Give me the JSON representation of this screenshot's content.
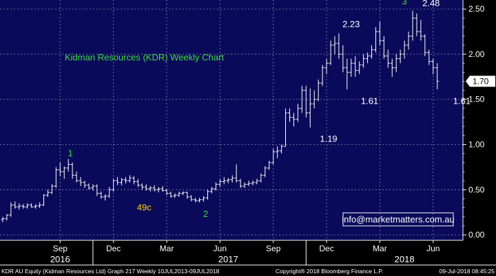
{
  "chart_data": {
    "type": "ohlc",
    "title": "Kidman Resources (KDR) Weekly Chart",
    "title_color": "#3ddc3d",
    "watermark": "info@marketmatters.com.au",
    "last_price_label": "1.70",
    "last_price": 1.7,
    "ylim": [
      -0.06,
      2.6
    ],
    "yticks": [
      0.0,
      0.5,
      1.0,
      1.5,
      2.0,
      2.5
    ],
    "ytick_labels": [
      "0.00",
      "0.50",
      "1.00",
      "1.50",
      "2.00",
      "2.50"
    ],
    "grid": true,
    "x_months": [
      {
        "label": "Sep",
        "week": 14
      },
      {
        "label": "Dec",
        "week": 27
      },
      {
        "label": "Mar",
        "week": 40
      },
      {
        "label": "Jun",
        "week": 53
      },
      {
        "label": "Sep",
        "week": 66
      },
      {
        "label": "Dec",
        "week": 79
      },
      {
        "label": "Mar",
        "week": 92
      },
      {
        "label": "Jun",
        "week": 105
      }
    ],
    "x_years": [
      {
        "label": "2016",
        "week": 14
      },
      {
        "label": "2017",
        "week": 55
      },
      {
        "label": "2018",
        "week": 98
      }
    ],
    "year_dividers": [
      22,
      74
    ],
    "annotations": [
      {
        "text": "1",
        "week": 16.5,
        "price": 0.87,
        "color": "#3ddc3d"
      },
      {
        "text": "49c",
        "week": 34.5,
        "price": 0.27,
        "color": "#ffd400"
      },
      {
        "text": "2",
        "week": 49.5,
        "price": 0.2,
        "color": "#3ddc3d"
      },
      {
        "text": "2.23",
        "week": 85,
        "price": 2.3,
        "color": "#ffffff"
      },
      {
        "text": "1.61",
        "week": 89.5,
        "price": 1.45,
        "color": "#ffffff"
      },
      {
        "text": "1.19",
        "week": 79.5,
        "price": 1.03,
        "color": "#ffffff"
      },
      {
        "text": "3",
        "week": 98,
        "price": 2.55,
        "color": "#3ddc3d"
      },
      {
        "text": "2.48",
        "week": 104.5,
        "price": 2.53,
        "color": "#ffffff"
      },
      {
        "text": "1.61",
        "week": 112,
        "price": 1.45,
        "color": "#ffffff"
      }
    ],
    "bars": [
      {
        "o": 0.17,
        "h": 0.2,
        "l": 0.14,
        "c": 0.18
      },
      {
        "o": 0.18,
        "h": 0.23,
        "l": 0.16,
        "c": 0.22
      },
      {
        "o": 0.22,
        "h": 0.36,
        "l": 0.2,
        "c": 0.33
      },
      {
        "o": 0.33,
        "h": 0.37,
        "l": 0.29,
        "c": 0.31
      },
      {
        "o": 0.31,
        "h": 0.35,
        "l": 0.28,
        "c": 0.32
      },
      {
        "o": 0.32,
        "h": 0.34,
        "l": 0.29,
        "c": 0.31
      },
      {
        "o": 0.31,
        "h": 0.35,
        "l": 0.29,
        "c": 0.33
      },
      {
        "o": 0.33,
        "h": 0.35,
        "l": 0.3,
        "c": 0.31
      },
      {
        "o": 0.31,
        "h": 0.34,
        "l": 0.29,
        "c": 0.32
      },
      {
        "o": 0.32,
        "h": 0.36,
        "l": 0.3,
        "c": 0.33
      },
      {
        "o": 0.33,
        "h": 0.45,
        "l": 0.32,
        "c": 0.44
      },
      {
        "o": 0.44,
        "h": 0.5,
        "l": 0.42,
        "c": 0.47
      },
      {
        "o": 0.47,
        "h": 0.56,
        "l": 0.45,
        "c": 0.54
      },
      {
        "o": 0.54,
        "h": 0.75,
        "l": 0.52,
        "c": 0.72
      },
      {
        "o": 0.72,
        "h": 0.8,
        "l": 0.65,
        "c": 0.7
      },
      {
        "o": 0.7,
        "h": 0.76,
        "l": 0.62,
        "c": 0.74
      },
      {
        "o": 0.74,
        "h": 0.84,
        "l": 0.7,
        "c": 0.78
      },
      {
        "o": 0.78,
        "h": 0.8,
        "l": 0.62,
        "c": 0.66
      },
      {
        "o": 0.66,
        "h": 0.7,
        "l": 0.58,
        "c": 0.6
      },
      {
        "o": 0.6,
        "h": 0.64,
        "l": 0.54,
        "c": 0.58
      },
      {
        "o": 0.58,
        "h": 0.6,
        "l": 0.52,
        "c": 0.55
      },
      {
        "o": 0.55,
        "h": 0.57,
        "l": 0.5,
        "c": 0.52
      },
      {
        "o": 0.52,
        "h": 0.56,
        "l": 0.49,
        "c": 0.54
      },
      {
        "o": 0.54,
        "h": 0.56,
        "l": 0.43,
        "c": 0.46
      },
      {
        "o": 0.46,
        "h": 0.48,
        "l": 0.4,
        "c": 0.42
      },
      {
        "o": 0.42,
        "h": 0.45,
        "l": 0.38,
        "c": 0.43
      },
      {
        "o": 0.43,
        "h": 0.53,
        "l": 0.41,
        "c": 0.5
      },
      {
        "o": 0.5,
        "h": 0.62,
        "l": 0.48,
        "c": 0.6
      },
      {
        "o": 0.6,
        "h": 0.64,
        "l": 0.55,
        "c": 0.58
      },
      {
        "o": 0.58,
        "h": 0.63,
        "l": 0.55,
        "c": 0.61
      },
      {
        "o": 0.61,
        "h": 0.64,
        "l": 0.57,
        "c": 0.6
      },
      {
        "o": 0.6,
        "h": 0.66,
        "l": 0.58,
        "c": 0.63
      },
      {
        "o": 0.63,
        "h": 0.65,
        "l": 0.56,
        "c": 0.59
      },
      {
        "o": 0.59,
        "h": 0.62,
        "l": 0.53,
        "c": 0.55
      },
      {
        "o": 0.55,
        "h": 0.57,
        "l": 0.5,
        "c": 0.53
      },
      {
        "o": 0.53,
        "h": 0.56,
        "l": 0.49,
        "c": 0.51
      },
      {
        "o": 0.51,
        "h": 0.54,
        "l": 0.48,
        "c": 0.52
      },
      {
        "o": 0.52,
        "h": 0.55,
        "l": 0.48,
        "c": 0.5
      },
      {
        "o": 0.5,
        "h": 0.53,
        "l": 0.47,
        "c": 0.51
      },
      {
        "o": 0.51,
        "h": 0.54,
        "l": 0.48,
        "c": 0.49
      },
      {
        "o": 0.49,
        "h": 0.51,
        "l": 0.44,
        "c": 0.46
      },
      {
        "o": 0.46,
        "h": 0.48,
        "l": 0.41,
        "c": 0.43
      },
      {
        "o": 0.43,
        "h": 0.46,
        "l": 0.41,
        "c": 0.44
      },
      {
        "o": 0.44,
        "h": 0.48,
        "l": 0.42,
        "c": 0.46
      },
      {
        "o": 0.46,
        "h": 0.48,
        "l": 0.44,
        "c": 0.47
      },
      {
        "o": 0.47,
        "h": 0.48,
        "l": 0.4,
        "c": 0.42
      },
      {
        "o": 0.42,
        "h": 0.44,
        "l": 0.37,
        "c": 0.39
      },
      {
        "o": 0.39,
        "h": 0.41,
        "l": 0.36,
        "c": 0.38
      },
      {
        "o": 0.38,
        "h": 0.41,
        "l": 0.36,
        "c": 0.39
      },
      {
        "o": 0.39,
        "h": 0.43,
        "l": 0.37,
        "c": 0.41
      },
      {
        "o": 0.41,
        "h": 0.5,
        "l": 0.39,
        "c": 0.48
      },
      {
        "o": 0.48,
        "h": 0.53,
        "l": 0.46,
        "c": 0.51
      },
      {
        "o": 0.51,
        "h": 0.58,
        "l": 0.49,
        "c": 0.56
      },
      {
        "o": 0.56,
        "h": 0.62,
        "l": 0.53,
        "c": 0.59
      },
      {
        "o": 0.59,
        "h": 0.64,
        "l": 0.56,
        "c": 0.6
      },
      {
        "o": 0.6,
        "h": 0.63,
        "l": 0.57,
        "c": 0.61
      },
      {
        "o": 0.61,
        "h": 0.66,
        "l": 0.58,
        "c": 0.63
      },
      {
        "o": 0.63,
        "h": 0.78,
        "l": 0.58,
        "c": 0.6
      },
      {
        "o": 0.6,
        "h": 0.62,
        "l": 0.52,
        "c": 0.54
      },
      {
        "o": 0.54,
        "h": 0.58,
        "l": 0.52,
        "c": 0.56
      },
      {
        "o": 0.56,
        "h": 0.6,
        "l": 0.54,
        "c": 0.57
      },
      {
        "o": 0.57,
        "h": 0.6,
        "l": 0.55,
        "c": 0.58
      },
      {
        "o": 0.58,
        "h": 0.62,
        "l": 0.56,
        "c": 0.6
      },
      {
        "o": 0.6,
        "h": 0.68,
        "l": 0.58,
        "c": 0.66
      },
      {
        "o": 0.66,
        "h": 0.76,
        "l": 0.64,
        "c": 0.74
      },
      {
        "o": 0.74,
        "h": 0.82,
        "l": 0.72,
        "c": 0.8
      },
      {
        "o": 0.8,
        "h": 0.95,
        "l": 0.78,
        "c": 0.92
      },
      {
        "o": 0.92,
        "h": 0.98,
        "l": 0.85,
        "c": 0.93
      },
      {
        "o": 0.93,
        "h": 1.0,
        "l": 0.9,
        "c": 0.98
      },
      {
        "o": 0.98,
        "h": 1.4,
        "l": 0.98,
        "c": 1.35
      },
      {
        "o": 1.35,
        "h": 1.4,
        "l": 1.25,
        "c": 1.3
      },
      {
        "o": 1.3,
        "h": 1.35,
        "l": 1.2,
        "c": 1.28
      },
      {
        "o": 1.28,
        "h": 1.45,
        "l": 1.25,
        "c": 1.4
      },
      {
        "o": 1.4,
        "h": 1.65,
        "l": 1.35,
        "c": 1.6
      },
      {
        "o": 1.6,
        "h": 1.65,
        "l": 1.3,
        "c": 1.35
      },
      {
        "o": 1.35,
        "h": 1.62,
        "l": 1.19,
        "c": 1.45
      },
      {
        "o": 1.45,
        "h": 1.6,
        "l": 1.4,
        "c": 1.5
      },
      {
        "o": 1.5,
        "h": 1.72,
        "l": 1.48,
        "c": 1.68
      },
      {
        "o": 1.68,
        "h": 1.88,
        "l": 1.65,
        "c": 1.85
      },
      {
        "o": 1.85,
        "h": 1.95,
        "l": 1.78,
        "c": 1.9
      },
      {
        "o": 1.9,
        "h": 2.15,
        "l": 1.88,
        "c": 2.1
      },
      {
        "o": 2.1,
        "h": 2.2,
        "l": 2.0,
        "c": 2.12
      },
      {
        "o": 2.12,
        "h": 2.23,
        "l": 1.95,
        "c": 2.0
      },
      {
        "o": 2.0,
        "h": 2.1,
        "l": 1.8,
        "c": 1.85
      },
      {
        "o": 1.85,
        "h": 1.95,
        "l": 1.61,
        "c": 1.8
      },
      {
        "o": 1.8,
        "h": 1.95,
        "l": 1.75,
        "c": 1.9
      },
      {
        "o": 1.9,
        "h": 1.98,
        "l": 1.75,
        "c": 1.82
      },
      {
        "o": 1.82,
        "h": 1.92,
        "l": 1.78,
        "c": 1.88
      },
      {
        "o": 1.88,
        "h": 2.0,
        "l": 1.85,
        "c": 1.95
      },
      {
        "o": 1.95,
        "h": 2.02,
        "l": 1.9,
        "c": 1.98
      },
      {
        "o": 1.98,
        "h": 2.1,
        "l": 1.95,
        "c": 2.05
      },
      {
        "o": 2.05,
        "h": 2.3,
        "l": 2.02,
        "c": 2.25
      },
      {
        "o": 2.25,
        "h": 2.36,
        "l": 2.1,
        "c": 2.15
      },
      {
        "o": 2.15,
        "h": 2.2,
        "l": 1.95,
        "c": 1.98
      },
      {
        "o": 1.98,
        "h": 2.05,
        "l": 1.85,
        "c": 1.9
      },
      {
        "o": 1.9,
        "h": 1.95,
        "l": 1.75,
        "c": 1.85
      },
      {
        "o": 1.85,
        "h": 2.0,
        "l": 1.8,
        "c": 1.95
      },
      {
        "o": 1.95,
        "h": 2.05,
        "l": 1.9,
        "c": 2.0
      },
      {
        "o": 2.0,
        "h": 2.15,
        "l": 1.95,
        "c": 2.1
      },
      {
        "o": 2.1,
        "h": 2.25,
        "l": 2.05,
        "c": 2.2
      },
      {
        "o": 2.2,
        "h": 2.48,
        "l": 2.15,
        "c": 2.4
      },
      {
        "o": 2.4,
        "h": 2.45,
        "l": 2.2,
        "c": 2.25
      },
      {
        "o": 2.25,
        "h": 2.38,
        "l": 2.15,
        "c": 2.2
      },
      {
        "o": 2.2,
        "h": 2.22,
        "l": 1.98,
        "c": 2.02
      },
      {
        "o": 2.02,
        "h": 2.05,
        "l": 1.88,
        "c": 1.92
      },
      {
        "o": 1.92,
        "h": 1.95,
        "l": 1.78,
        "c": 1.85
      },
      {
        "o": 1.85,
        "h": 1.9,
        "l": 1.61,
        "c": 1.7
      }
    ]
  },
  "footer": {
    "left": "KDR AU Equity (Kidman Resources Ltd) Graph 217  Weekly 10JUL2013-09JUL2018",
    "middle": "Copyright® 2018 Bloomberg Finance L.P.",
    "right": "09-Jul-2018 08:45:25"
  },
  "colors": {
    "plot_bg": "#0a0a5a",
    "grid": "#8a8ab4",
    "bar": "#ffffff",
    "watermark_border": "#ffffff",
    "watermark_text": "#ffffff"
  }
}
